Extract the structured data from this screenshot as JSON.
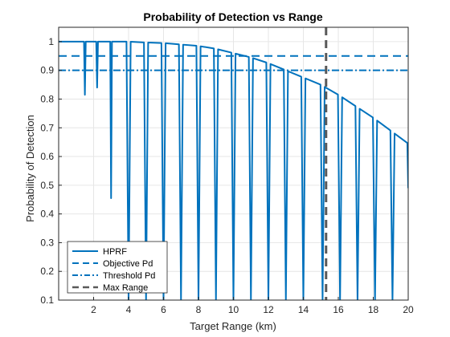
{
  "chart_data": {
    "type": "line",
    "title": "Probability of Detection vs Range",
    "xlabel": "Target Range (km)",
    "ylabel": "Probability of Detection",
    "xlim": [
      0,
      20
    ],
    "ylim": [
      0.1,
      1.05
    ],
    "xticks": [
      2,
      4,
      6,
      8,
      10,
      12,
      14,
      16,
      18,
      20
    ],
    "yticks": [
      0.1,
      0.2,
      0.3,
      0.4,
      0.5,
      0.6,
      0.7,
      0.8,
      0.9,
      1
    ],
    "ytick_labels": [
      "0.1",
      "0.2",
      "0.3",
      "0.4",
      "0.5",
      "0.6",
      "0.7",
      "0.8",
      "0.9",
      "1"
    ],
    "grid": true,
    "legend_position": "bottom-left",
    "series": [
      {
        "name": "HPRF",
        "style": "solid",
        "color": "#0072BD",
        "envelope": {
          "x": [
            0,
            1,
            2,
            3,
            4,
            5,
            6,
            7,
            8,
            9,
            10,
            11,
            12,
            13,
            14,
            15,
            16,
            17,
            18,
            19,
            20
          ],
          "y": [
            1.0,
            1.0,
            1.0,
            1.0,
            1.0,
            0.997,
            0.995,
            0.99,
            0.985,
            0.975,
            0.96,
            0.945,
            0.925,
            0.9,
            0.875,
            0.85,
            0.815,
            0.775,
            0.735,
            0.69,
            0.645
          ]
        },
        "eclipse_nulls": {
          "x": [
            1.5,
            2.2,
            3.0,
            4.0,
            5.0,
            6.0,
            7.0,
            8.0,
            9.0,
            10.0,
            11.0,
            12.0,
            13.0,
            14.0,
            15.1,
            16.1,
            17.1,
            18.1,
            19.1,
            20.0
          ],
          "y": [
            0.815,
            0.84,
            0.455,
            0.1,
            0.1,
            0.1,
            0.1,
            0.1,
            0.1,
            0.1,
            0.1,
            0.1,
            0.1,
            0.1,
            0.1,
            0.1,
            0.1,
            0.1,
            0.1,
            0.49
          ]
        }
      },
      {
        "name": "Objective Pd",
        "style": "dashed",
        "color": "#0072BD",
        "y": 0.95
      },
      {
        "name": "Threshold Pd",
        "style": "dashdot",
        "color": "#0072BD",
        "y": 0.9
      },
      {
        "name": "Max Range",
        "style": "dashed",
        "color": "#595959",
        "x": 15.3
      }
    ]
  }
}
